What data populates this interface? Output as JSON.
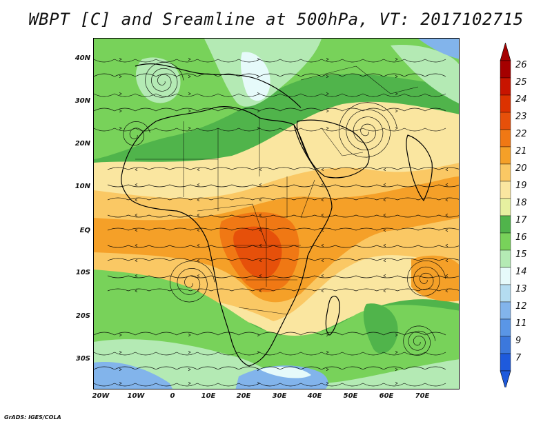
{
  "title": "WBPT [C] and Sreamline at 500hPa, VT: 2017102715",
  "credit": "GrADS: IGES/COLA",
  "lat_labels": [
    "40N",
    "30N",
    "20N",
    "10N",
    "EQ",
    "10S",
    "20S",
    "30S"
  ],
  "lon_labels": [
    "20W",
    "10W",
    "0",
    "10E",
    "20E",
    "30E",
    "40E",
    "50E",
    "60E",
    "70E"
  ],
  "colorbar": {
    "labels": [
      "26",
      "25",
      "24",
      "23",
      "22",
      "21",
      "20",
      "19",
      "18",
      "17",
      "16",
      "15",
      "14",
      "13",
      "12",
      "11",
      "9",
      "7"
    ],
    "colors": [
      "#a50000",
      "#c81400",
      "#dc3200",
      "#e6500a",
      "#f07814",
      "#f5a028",
      "#fac864",
      "#fae6a0",
      "#e6f0a0",
      "#50b44b",
      "#78d25a",
      "#b4eab4",
      "#e6fafa",
      "#b4dcf0",
      "#82b4eb",
      "#5a96e6",
      "#3c78dc",
      "#1e5adc"
    ],
    "top_arrow_color": "#a50000",
    "bottom_arrow_color": "#1e5adc"
  },
  "map": {
    "colors": {
      "cool_blue": "#82b4eb",
      "pale_blue": "#e6fafa",
      "light_green": "#b4eab4",
      "mid_green": "#78d25a",
      "dark_green": "#50b44b",
      "pale_yellow": "#e6f0a0",
      "cream": "#fae6a0",
      "light_orange": "#fac864",
      "orange": "#f5a028",
      "dark_orange": "#f07814",
      "red_orange": "#e6500a"
    }
  }
}
